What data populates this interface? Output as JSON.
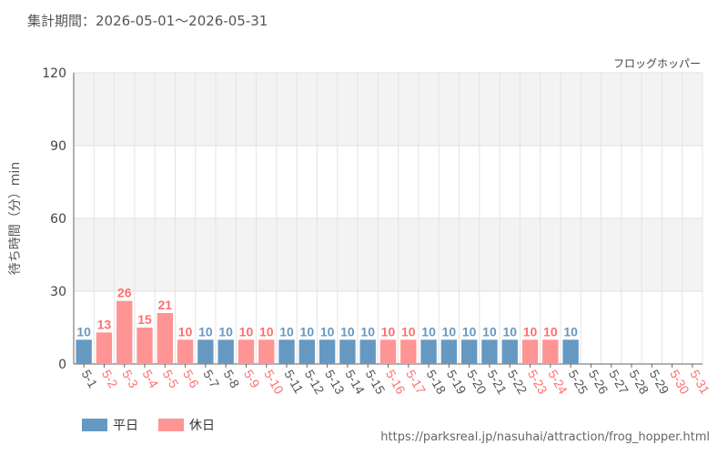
{
  "header": {
    "period": "集計期間：2026-05-01〜2026-05-31",
    "attraction": "フロッグホッパー"
  },
  "legend": {
    "weekday": "平日",
    "holiday": "休日"
  },
  "source": "https://parksreal.jp/nasuhai/attraction/frog_hopper.html",
  "colors": {
    "weekday": "#6699c2",
    "holiday": "#ff9494",
    "holiday_text": "#ff6f6f",
    "weekday_text": "#555555",
    "band": "#f3f3f3"
  },
  "chart_data": {
    "type": "bar",
    "ylabel": "待ち時間（分）min",
    "ylim": [
      0,
      120
    ],
    "yticks": [
      0,
      30,
      60,
      90,
      120
    ],
    "grid": true,
    "legend_position": "bottom-left",
    "categories": [
      "5-1",
      "5-2",
      "5-3",
      "5-4",
      "5-5",
      "5-6",
      "5-7",
      "5-8",
      "5-9",
      "5-10",
      "5-11",
      "5-12",
      "5-13",
      "5-14",
      "5-15",
      "5-16",
      "5-17",
      "5-18",
      "5-19",
      "5-20",
      "5-21",
      "5-22",
      "5-23",
      "5-24",
      "5-25",
      "5-26",
      "5-27",
      "5-28",
      "5-29",
      "5-30",
      "5-31"
    ],
    "values": [
      10,
      13,
      26,
      15,
      21,
      10,
      10,
      10,
      10,
      10,
      10,
      10,
      10,
      10,
      10,
      10,
      10,
      10,
      10,
      10,
      10,
      10,
      10,
      10,
      10,
      null,
      null,
      null,
      null,
      null,
      null
    ],
    "day_type": [
      "weekday",
      "holiday",
      "holiday",
      "holiday",
      "holiday",
      "holiday",
      "weekday",
      "weekday",
      "holiday",
      "holiday",
      "weekday",
      "weekday",
      "weekday",
      "weekday",
      "weekday",
      "holiday",
      "holiday",
      "weekday",
      "weekday",
      "weekday",
      "weekday",
      "weekday",
      "holiday",
      "holiday",
      "weekday",
      "weekday",
      "weekday",
      "weekday",
      "weekday",
      "holiday",
      "holiday"
    ]
  }
}
